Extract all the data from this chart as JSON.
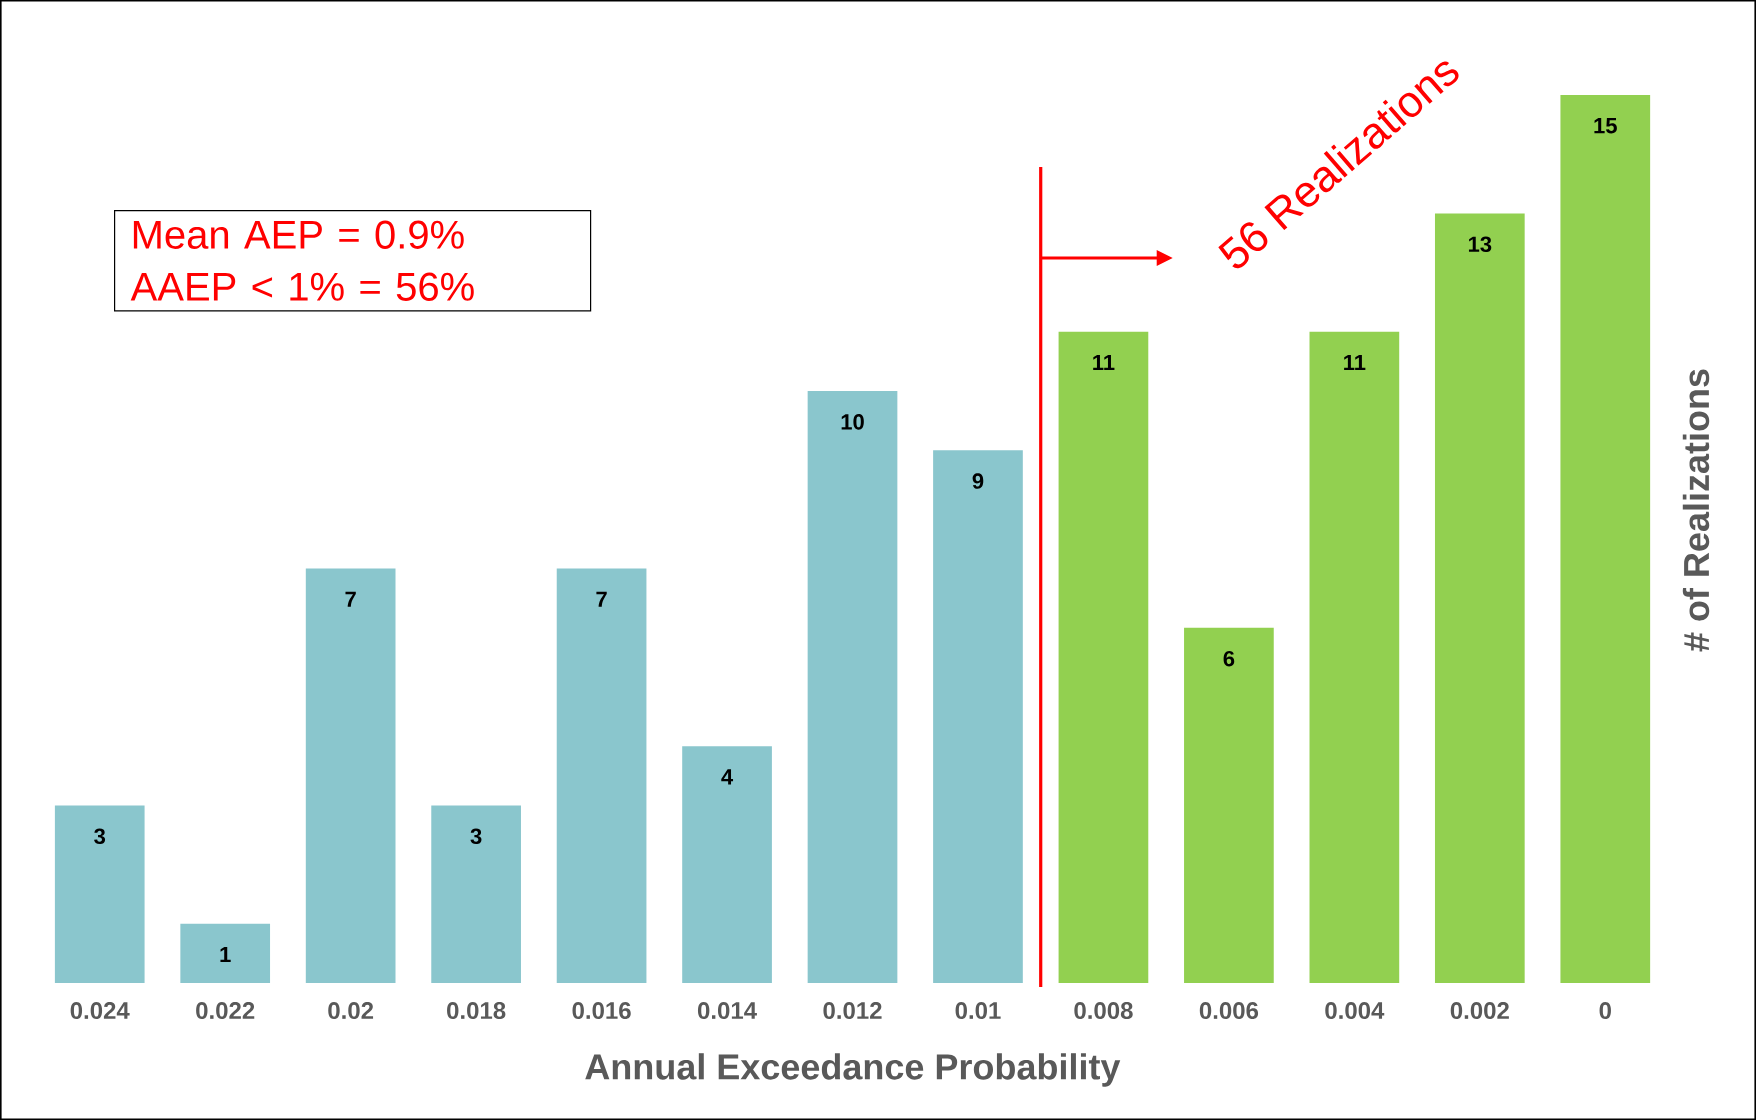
{
  "chart_data": {
    "type": "bar",
    "categories": [
      "0.024",
      "0.022",
      "0.02",
      "0.018",
      "0.016",
      "0.014",
      "0.012",
      "0.01",
      "0.008",
      "0.006",
      "0.004",
      "0.002",
      "0"
    ],
    "values": [
      3,
      1,
      7,
      3,
      7,
      4,
      10,
      9,
      11,
      6,
      11,
      13,
      15
    ],
    "colors": [
      "#8ac6cd",
      "#8ac6cd",
      "#8ac6cd",
      "#8ac6cd",
      "#8ac6cd",
      "#8ac6cd",
      "#8ac6cd",
      "#8ac6cd",
      "#92d050",
      "#92d050",
      "#92d050",
      "#92d050",
      "#92d050"
    ],
    "data_labels": true,
    "xlabel": "Annual Exceedance Probability",
    "ylabel": "# of Realizations",
    "annotations": [
      "Mean AEP = 0.9%",
      "AAEP < 1% = 56%",
      "56 Realizations"
    ]
  }
}
